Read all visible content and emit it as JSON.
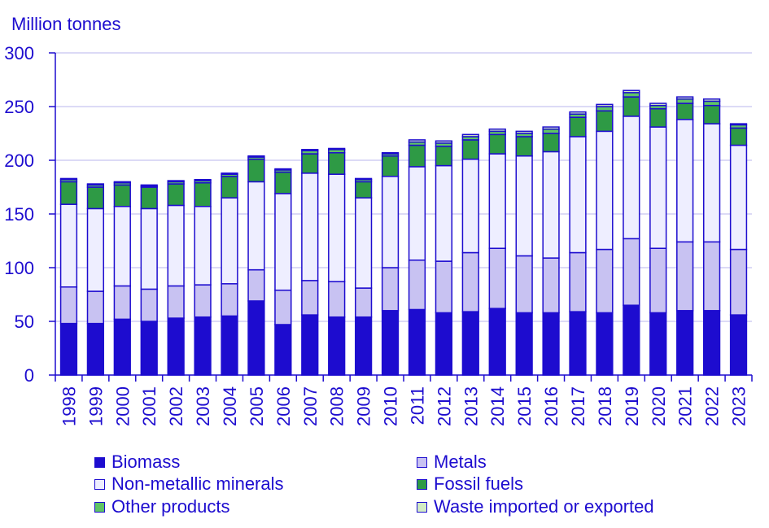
{
  "chart_data": {
    "type": "bar",
    "stacked": true,
    "ylabel": "Million tonnes",
    "ylim": [
      0,
      300
    ],
    "yticks": [
      0,
      50,
      100,
      150,
      200,
      250,
      300
    ],
    "categories": [
      "1998",
      "1999",
      "2000",
      "2001",
      "2002",
      "2003",
      "2004",
      "2005",
      "2006",
      "2007",
      "2008",
      "2009",
      "2010",
      "2011",
      "2012",
      "2013",
      "2014",
      "2015",
      "2016",
      "2017",
      "2018",
      "2019",
      "2020",
      "2021",
      "2022",
      "2023"
    ],
    "series": [
      {
        "name": "Biomass",
        "color": "#1d0ccf",
        "values": [
          48,
          48,
          52,
          50,
          53,
          54,
          55,
          69,
          47,
          56,
          54,
          54,
          60,
          61,
          58,
          59,
          62,
          58,
          58,
          59,
          58,
          65,
          58,
          60,
          60,
          56
        ]
      },
      {
        "name": "Metals",
        "color": "#c8c2f2",
        "values": [
          34,
          30,
          31,
          30,
          30,
          30,
          30,
          29,
          32,
          32,
          33,
          27,
          40,
          46,
          48,
          55,
          56,
          53,
          51,
          55,
          59,
          62,
          60,
          64,
          64,
          61
        ]
      },
      {
        "name": "Non-metallic minerals",
        "color": "#eeeeff",
        "values": [
          77,
          77,
          74,
          75,
          75,
          73,
          80,
          82,
          90,
          100,
          100,
          84,
          85,
          87,
          89,
          87,
          88,
          93,
          99,
          108,
          110,
          114,
          113,
          114,
          110,
          97
        ]
      },
      {
        "name": "Fossil fuels",
        "color": "#2e9a45",
        "values": [
          21,
          20,
          20,
          20,
          20,
          22,
          20,
          21,
          20,
          18,
          20,
          15,
          19,
          20,
          18,
          18,
          18,
          18,
          17,
          18,
          19,
          18,
          17,
          15,
          17,
          16
        ]
      },
      {
        "name": "Other products",
        "color": "#5fc465",
        "values": [
          2,
          2,
          2,
          1,
          2,
          2,
          2,
          2,
          2,
          3,
          3,
          2,
          2,
          3,
          3,
          3,
          3,
          3,
          4,
          3,
          4,
          4,
          3,
          4,
          4,
          3
        ]
      },
      {
        "name": "Waste imported or exported",
        "color": "#d2ecc4",
        "values": [
          1,
          1,
          1,
          1,
          1,
          1,
          1,
          1,
          1,
          1,
          1,
          1,
          1,
          2,
          2,
          2,
          2,
          2,
          2,
          2,
          2,
          2,
          2,
          2,
          2,
          1
        ]
      }
    ],
    "legend_position": "bottom"
  }
}
